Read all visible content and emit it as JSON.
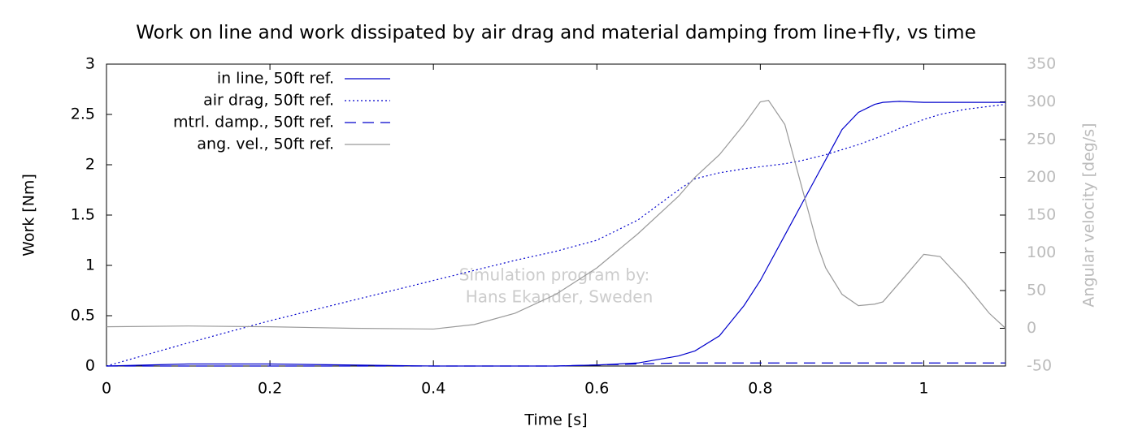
{
  "chart_data": {
    "type": "line",
    "title": "Work on line and work dissipated by air drag and material damping from line+fly, vs time",
    "xlabel": "Time [s]",
    "ylabel": "Work [Nm]",
    "y2label": "Angular velocity [deg/s]",
    "annotations": [
      "Simulation program by:",
      "Hans Ekander, Sweden"
    ],
    "x": [
      0,
      0.1,
      0.2,
      0.3,
      0.4,
      0.45,
      0.5,
      0.55,
      0.6,
      0.65,
      0.7,
      0.72,
      0.75,
      0.78,
      0.8,
      0.81,
      0.83,
      0.85,
      0.87,
      0.88,
      0.9,
      0.92,
      0.94,
      0.95,
      0.97,
      1.0,
      1.02,
      1.05,
      1.08,
      1.1
    ],
    "series": [
      {
        "name": "in line, 50ft ref.",
        "color": "#0000cc",
        "dash": "solid",
        "axis": "y",
        "values": [
          0,
          0.02,
          0.02,
          0.01,
          0,
          0,
          0,
          0,
          0.01,
          0.03,
          0.1,
          0.15,
          0.3,
          0.6,
          0.85,
          1.0,
          1.3,
          1.6,
          1.9,
          2.05,
          2.35,
          2.52,
          2.6,
          2.62,
          2.63,
          2.62,
          2.62,
          2.62,
          2.62,
          2.62
        ]
      },
      {
        "name": "air drag, 50ft ref.",
        "color": "#0000cc",
        "dash": "dotted",
        "axis": "y",
        "values": [
          0,
          0.23,
          0.45,
          0.65,
          0.85,
          0.95,
          1.05,
          1.14,
          1.25,
          1.45,
          1.75,
          1.86,
          1.92,
          1.96,
          1.98,
          1.99,
          2.01,
          2.04,
          2.08,
          2.1,
          2.15,
          2.2,
          2.26,
          2.29,
          2.36,
          2.45,
          2.5,
          2.55,
          2.58,
          2.6
        ]
      },
      {
        "name": "mtrl. damp., 50ft ref.",
        "color": "#0000cc",
        "dash": "dashed",
        "axis": "y",
        "values": [
          0,
          0,
          0,
          0,
          0,
          0,
          0,
          0,
          0.01,
          0.02,
          0.03,
          0.03,
          0.03,
          0.03,
          0.03,
          0.03,
          0.03,
          0.03,
          0.03,
          0.03,
          0.03,
          0.03,
          0.03,
          0.03,
          0.03,
          0.03,
          0.03,
          0.03,
          0.03,
          0.03
        ]
      },
      {
        "name": "ang. vel., 50ft ref.",
        "color": "#999999",
        "dash": "solid",
        "axis": "y2",
        "values": [
          2,
          3,
          2,
          0,
          -1,
          5,
          20,
          45,
          80,
          125,
          175,
          200,
          230,
          270,
          300,
          302,
          270,
          190,
          110,
          80,
          45,
          30,
          32,
          35,
          60,
          98,
          95,
          60,
          20,
          0
        ]
      }
    ],
    "xlim": [
      0,
      1.1
    ],
    "xticks": [
      0,
      0.2,
      0.4,
      0.6,
      0.8,
      1
    ],
    "ylim": [
      0,
      3
    ],
    "yticks": [
      0,
      0.5,
      1,
      1.5,
      2,
      2.5,
      3
    ],
    "y2lim": [
      -50,
      350
    ],
    "y2ticks": [
      -50,
      0,
      50,
      100,
      150,
      200,
      250,
      300,
      350
    ],
    "legend": "upper left"
  }
}
